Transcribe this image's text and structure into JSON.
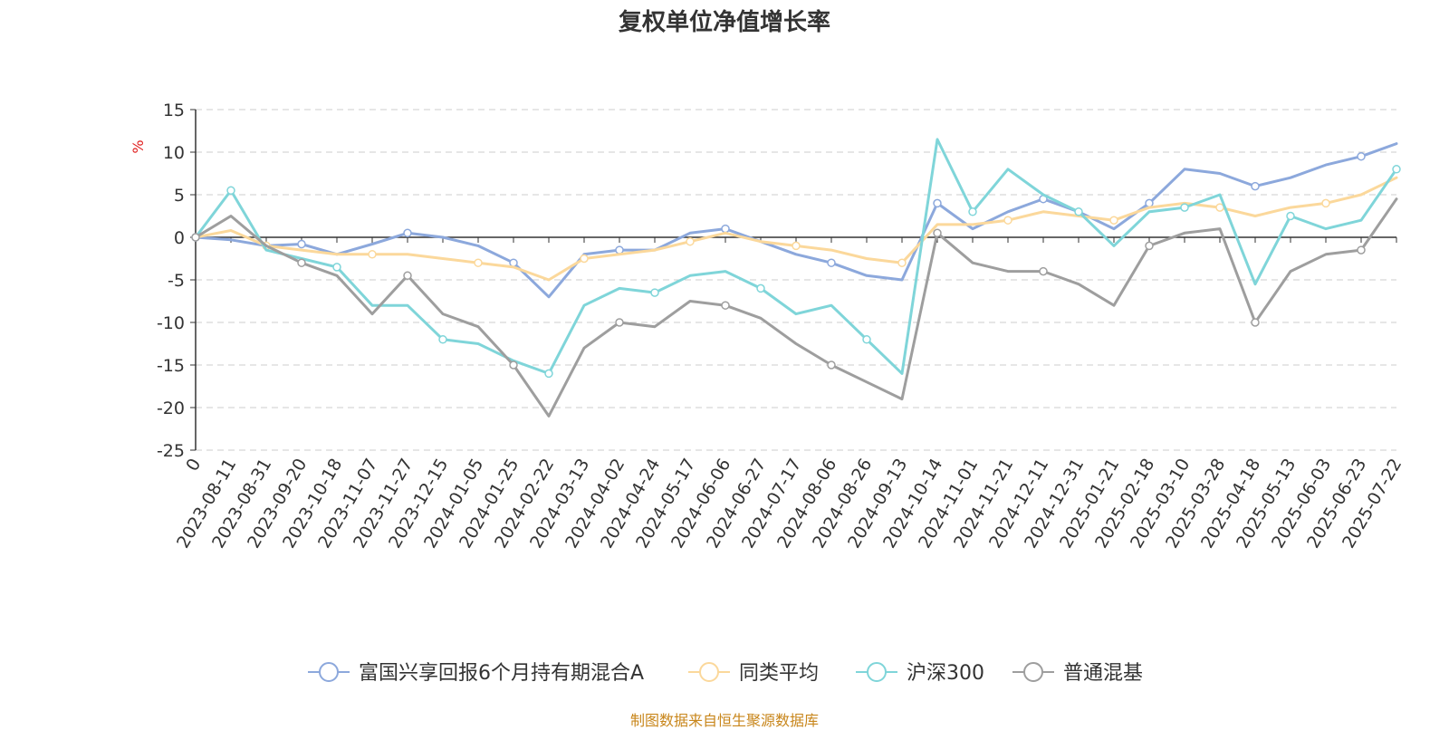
{
  "chart_data": {
    "type": "line",
    "title": "复权单位净值增长率",
    "ylabel": "%",
    "ylim": [
      -25,
      15
    ],
    "yticks": [
      15,
      10,
      5,
      0,
      -5,
      -10,
      -15,
      -20,
      -25
    ],
    "grid": true,
    "legend_position": "bottom",
    "categories": [
      "0",
      "2023-08-11",
      "2023-08-31",
      "2023-09-20",
      "2023-10-18",
      "2023-11-07",
      "2023-11-27",
      "2023-12-15",
      "2024-01-05",
      "2024-01-25",
      "2024-02-22",
      "2024-03-13",
      "2024-04-02",
      "2024-04-24",
      "2024-05-17",
      "2024-06-06",
      "2024-06-27",
      "2024-07-17",
      "2024-08-06",
      "2024-08-26",
      "2024-09-13",
      "2024-10-14",
      "2024-11-01",
      "2024-11-21",
      "2024-12-11",
      "2024-12-31",
      "2025-01-21",
      "2025-02-18",
      "2025-03-10",
      "2025-03-28",
      "2025-04-18",
      "2025-05-13",
      "2025-06-03",
      "2025-06-23",
      "2025-07-22"
    ],
    "series": [
      {
        "name": "富国兴享回报6个月持有期混合A",
        "color": "#8ca8dc",
        "values": [
          0,
          -0.3,
          -1.0,
          -0.8,
          -2.0,
          -0.8,
          0.5,
          0.0,
          -1.0,
          -3.0,
          -7.0,
          -2.0,
          -1.5,
          -1.5,
          0.5,
          1.0,
          -0.5,
          -2.0,
          -3.0,
          -4.5,
          -5.0,
          4.0,
          1.0,
          3.0,
          4.5,
          3.0,
          1.0,
          4.0,
          8.0,
          7.5,
          6.0,
          7.0,
          8.5,
          9.5,
          11.0
        ]
      },
      {
        "name": "同类平均",
        "color": "#fbd89b",
        "values": [
          0,
          0.8,
          -1.0,
          -1.5,
          -2.0,
          -2.0,
          -2.0,
          -2.5,
          -3.0,
          -3.5,
          -5.0,
          -2.5,
          -2.0,
          -1.5,
          -0.5,
          0.5,
          -0.5,
          -1.0,
          -1.5,
          -2.5,
          -3.0,
          1.5,
          1.5,
          2.0,
          3.0,
          2.5,
          2.0,
          3.5,
          4.0,
          3.5,
          2.5,
          3.5,
          4.0,
          5.0,
          7.0
        ]
      },
      {
        "name": "沪深300",
        "color": "#7fd5d9",
        "values": [
          0,
          5.5,
          -1.5,
          -2.5,
          -3.5,
          -8.0,
          -8.0,
          -12.0,
          -12.5,
          -14.5,
          -16.0,
          -8.0,
          -6.0,
          -6.5,
          -4.5,
          -4.0,
          -6.0,
          -9.0,
          -8.0,
          -12.0,
          -16.0,
          11.5,
          3.0,
          8.0,
          5.0,
          3.0,
          -1.0,
          3.0,
          3.5,
          5.0,
          -5.5,
          2.5,
          1.0,
          2.0,
          8.0
        ]
      },
      {
        "name": "普通混基",
        "color": "#9e9e9e",
        "values": [
          0,
          2.5,
          -1.0,
          -3.0,
          -4.5,
          -9.0,
          -4.5,
          -9.0,
          -10.5,
          -15.0,
          -21.0,
          -13.0,
          -10.0,
          -10.5,
          -7.5,
          -8.0,
          -9.5,
          -12.5,
          -15.0,
          -17.0,
          -19.0,
          0.5,
          -3.0,
          -4.0,
          -4.0,
          -5.5,
          -8.0,
          -1.0,
          0.5,
          1.0,
          -10.0,
          -4.0,
          -2.0,
          -1.5,
          4.5
        ]
      }
    ]
  },
  "source_note": "制图数据来自恒生聚源数据库"
}
